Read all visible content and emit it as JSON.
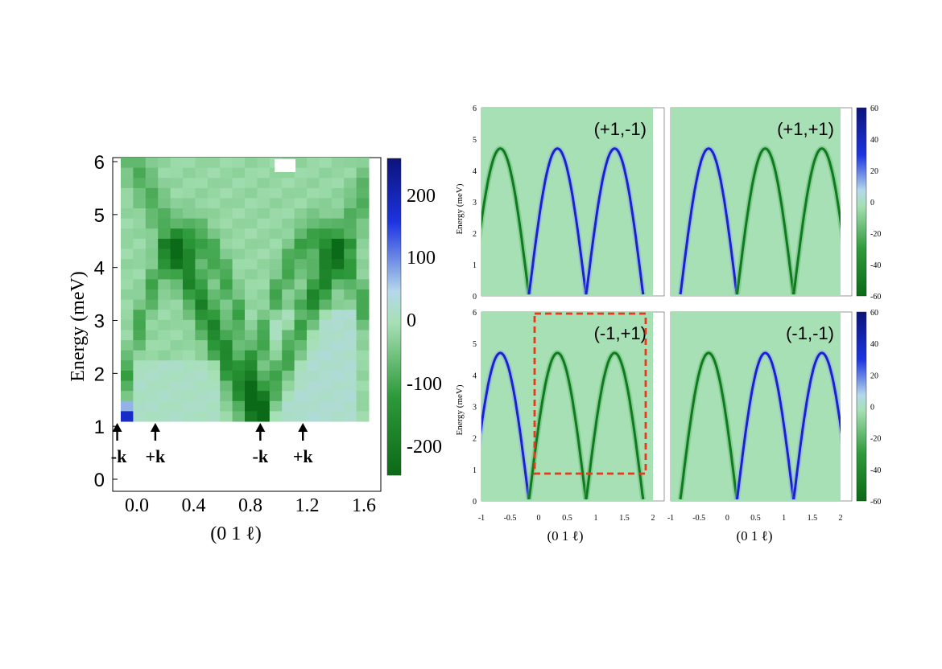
{
  "left_panel": {
    "ylabel": "Energy (meV)",
    "xlabel": "(0 1 ℓ)",
    "yticks": [
      "0",
      "1",
      "2",
      "3",
      "4",
      "5",
      "6"
    ],
    "xticks": [
      "0.0",
      "0.4",
      "0.8",
      "1.2",
      "1.6"
    ],
    "colorbar_ticks": [
      "200",
      "100",
      "0",
      "-100",
      "-200"
    ],
    "arrow_labels": [
      "-k",
      "+k",
      "-k",
      "+k"
    ]
  },
  "right_panels": {
    "ylabel": "Energy (meV)",
    "xlabel_left": "(0 1 ℓ)",
    "xlabel_right": "(0 1 ℓ)",
    "yticks": [
      "0",
      "1",
      "2",
      "3",
      "4",
      "5",
      "6"
    ],
    "xticks_left": [
      "-1",
      "-0.5",
      "0",
      "0.5",
      "1",
      "1.5",
      "2"
    ],
    "xticks_right": [
      "-1",
      "-0.5",
      "0",
      "0.5",
      "1",
      "1.5",
      "2"
    ],
    "colorbar_ticks": [
      "60",
      "40",
      "20",
      "0",
      "-20",
      "-40",
      "-60"
    ],
    "panel_labels": [
      "(+1,-1)",
      "(+1,+1)",
      "(-1,+1)",
      "(-1,-1)"
    ]
  },
  "colors": {
    "background_green": "#a6e0b4",
    "positive_blue": "#1a22d0",
    "negative_green": "#0f7a20",
    "highlight_box": "#e8391d"
  },
  "chart_data": [
    {
      "type": "heatmap",
      "title": "",
      "xlabel": "(0 1 ℓ)",
      "ylabel": "Energy (meV)",
      "xlim": [
        -0.3,
        1.9
      ],
      "ylim": [
        0,
        6
      ],
      "colorbar_range": [
        -250,
        250
      ],
      "colormap": "green-negative / blue-positive",
      "description_points": {
        "green_minima_l": [
          0.87
        ],
        "branch_peaks_l": [
          0.35,
          1.35
        ],
        "peak_energy_meV": 4.6,
        "annotations": [
          "-k at ℓ≈-0.2",
          "+k at ℓ≈0.1",
          "-k at ℓ≈0.87",
          "+k at ℓ≈1.17"
        ]
      }
    },
    {
      "type": "heatmap",
      "title": "",
      "panel": "(+1,-1)",
      "xlim": [
        -1,
        2
      ],
      "ylim": [
        0,
        6
      ],
      "colorbar_range": [
        -60,
        60
      ],
      "branch_centers_l": [
        -0.67,
        0.33,
        1.33
      ],
      "branch_sign": [
        -1,
        1,
        1
      ],
      "peak_energy_meV": 4.7
    },
    {
      "type": "heatmap",
      "title": "",
      "panel": "(+1,+1)",
      "xlim": [
        -1,
        2
      ],
      "ylim": [
        0,
        6
      ],
      "colorbar_range": [
        -60,
        60
      ],
      "branch_centers_l": [
        -0.33,
        0.67,
        1.67
      ],
      "branch_sign": [
        1,
        -1,
        -1
      ],
      "peak_energy_meV": 4.7
    },
    {
      "type": "heatmap",
      "title": "",
      "panel": "(-1,+1)",
      "xlim": [
        -1,
        2
      ],
      "ylim": [
        0,
        6
      ],
      "colorbar_range": [
        -60,
        60
      ],
      "branch_centers_l": [
        -0.67,
        0.33,
        1.33
      ],
      "branch_sign": [
        1,
        -1,
        -1
      ],
      "peak_energy_meV": 4.7
    },
    {
      "type": "heatmap",
      "title": "",
      "panel": "(-1,-1)",
      "xlim": [
        -1,
        2
      ],
      "ylim": [
        0,
        6
      ],
      "colorbar_range": [
        -60,
        60
      ],
      "branch_centers_l": [
        -0.33,
        0.67,
        1.67
      ],
      "branch_sign": [
        -1,
        1,
        1
      ],
      "peak_energy_meV": 4.7
    }
  ]
}
